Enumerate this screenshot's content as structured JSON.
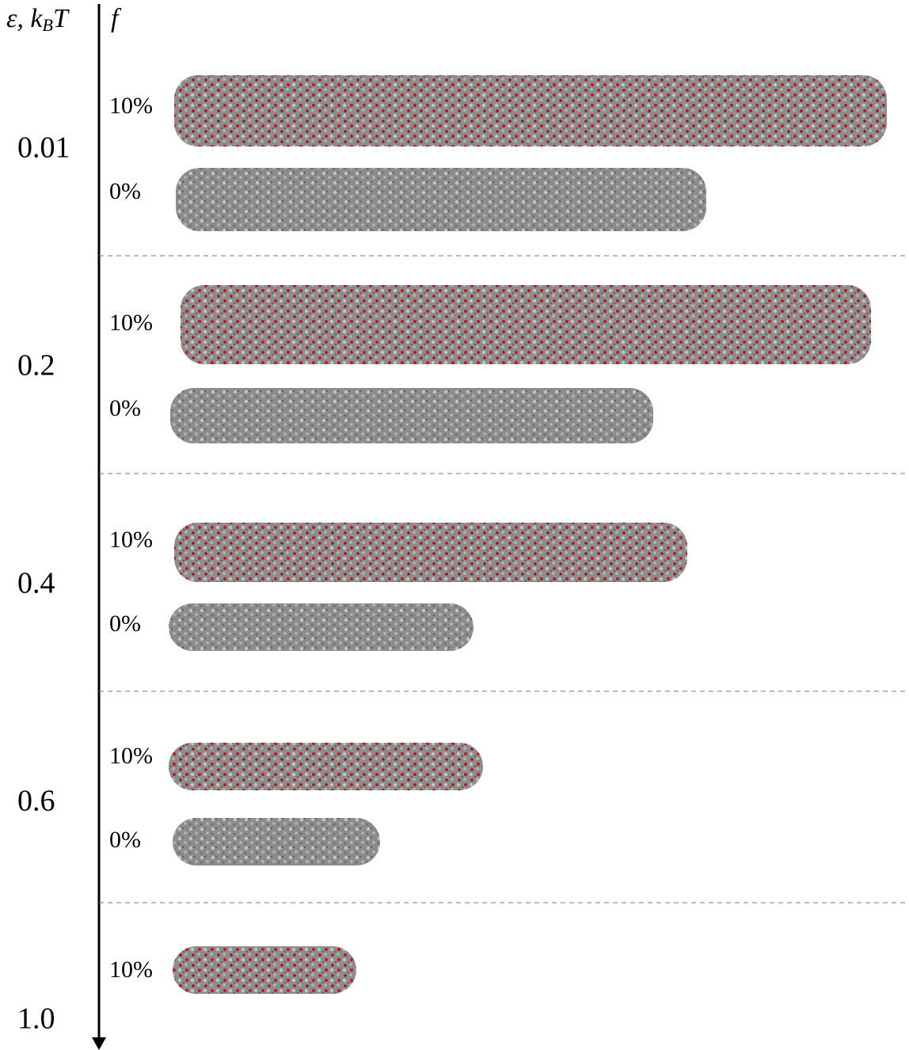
{
  "header": {
    "left": [
      "ε, k",
      "B",
      "T"
    ],
    "right": "f"
  },
  "groups": [
    {
      "label": "0.01",
      "rows": [
        "10%",
        "0%"
      ]
    },
    {
      "label": "0.2",
      "rows": [
        "10%",
        "0%"
      ]
    },
    {
      "label": "0.4",
      "rows": [
        "10%",
        "0%"
      ]
    },
    {
      "label": "0.6",
      "rows": [
        "10%",
        "0%"
      ]
    },
    {
      "label": "1.0",
      "rows": [
        "10%"
      ]
    }
  ]
}
